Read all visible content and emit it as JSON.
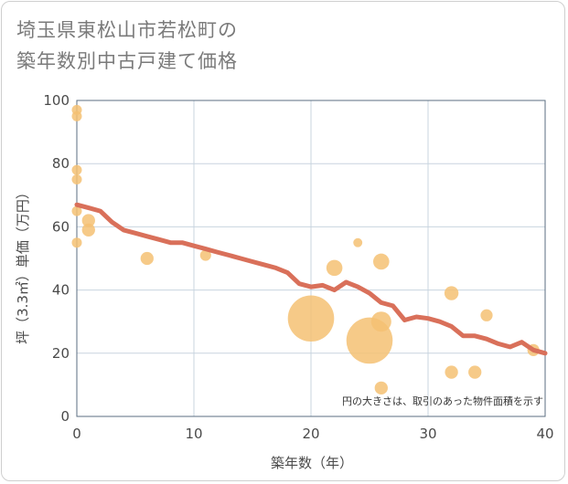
{
  "title_line1": "埼玉県東松山市若松町の",
  "title_line2": "築年数別中古戸建て価格",
  "chart_data": {
    "type": "scatter",
    "xlabel": "築年数（年）",
    "ylabel": "坪（3.3㎡）単価（万円）",
    "xlim": [
      0,
      40
    ],
    "ylim": [
      0,
      100
    ],
    "xticks": [
      0,
      10,
      20,
      30,
      40
    ],
    "yticks": [
      0,
      20,
      40,
      60,
      80,
      100
    ],
    "grid": true,
    "annotation": "円の大きさは、取引のあった物件面積を示す",
    "colors": {
      "points": "#f5c173",
      "trend": "#d9705a",
      "grid": "#c8d4df",
      "axis": "#5b6e80"
    },
    "points": [
      {
        "x": 0,
        "y": 97,
        "size": 1
      },
      {
        "x": 0,
        "y": 95,
        "size": 1
      },
      {
        "x": 0,
        "y": 78,
        "size": 1
      },
      {
        "x": 0,
        "y": 75,
        "size": 1
      },
      {
        "x": 0,
        "y": 65,
        "size": 1
      },
      {
        "x": 0,
        "y": 55,
        "size": 1
      },
      {
        "x": 1,
        "y": 62,
        "size": 1.3
      },
      {
        "x": 1,
        "y": 59,
        "size": 1.3
      },
      {
        "x": 6,
        "y": 50,
        "size": 1.3
      },
      {
        "x": 11,
        "y": 51,
        "size": 1.1
      },
      {
        "x": 20,
        "y": 31,
        "size": 4.6
      },
      {
        "x": 22,
        "y": 47,
        "size": 1.6
      },
      {
        "x": 24,
        "y": 55,
        "size": 0.9
      },
      {
        "x": 25,
        "y": 24,
        "size": 4.6
      },
      {
        "x": 26,
        "y": 49,
        "size": 1.6
      },
      {
        "x": 26,
        "y": 30,
        "size": 2.0
      },
      {
        "x": 26,
        "y": 9,
        "size": 1.3
      },
      {
        "x": 32,
        "y": 39,
        "size": 1.4
      },
      {
        "x": 32,
        "y": 14,
        "size": 1.3
      },
      {
        "x": 34,
        "y": 14,
        "size": 1.3
      },
      {
        "x": 35,
        "y": 32,
        "size": 1.2
      },
      {
        "x": 39,
        "y": 21,
        "size": 1.2
      }
    ],
    "trend": {
      "x": [
        0,
        1,
        2,
        3,
        4,
        5,
        6,
        7,
        8,
        9,
        10,
        11,
        12,
        13,
        14,
        15,
        16,
        17,
        18,
        19,
        20,
        21,
        22,
        23,
        24,
        25,
        26,
        27,
        28,
        29,
        30,
        31,
        32,
        33,
        34,
        35,
        36,
        37,
        38,
        39,
        40
      ],
      "y": [
        67,
        66,
        65,
        61.5,
        59,
        58,
        57,
        56,
        55,
        55,
        54,
        53,
        52,
        51,
        50,
        49,
        48,
        47,
        45.5,
        42,
        41,
        41.5,
        40,
        42.5,
        41,
        39,
        36,
        35,
        30.5,
        31.5,
        31,
        30,
        28.5,
        25.5,
        25.5,
        24.5,
        23,
        22,
        23.5,
        21,
        20
      ]
    }
  }
}
